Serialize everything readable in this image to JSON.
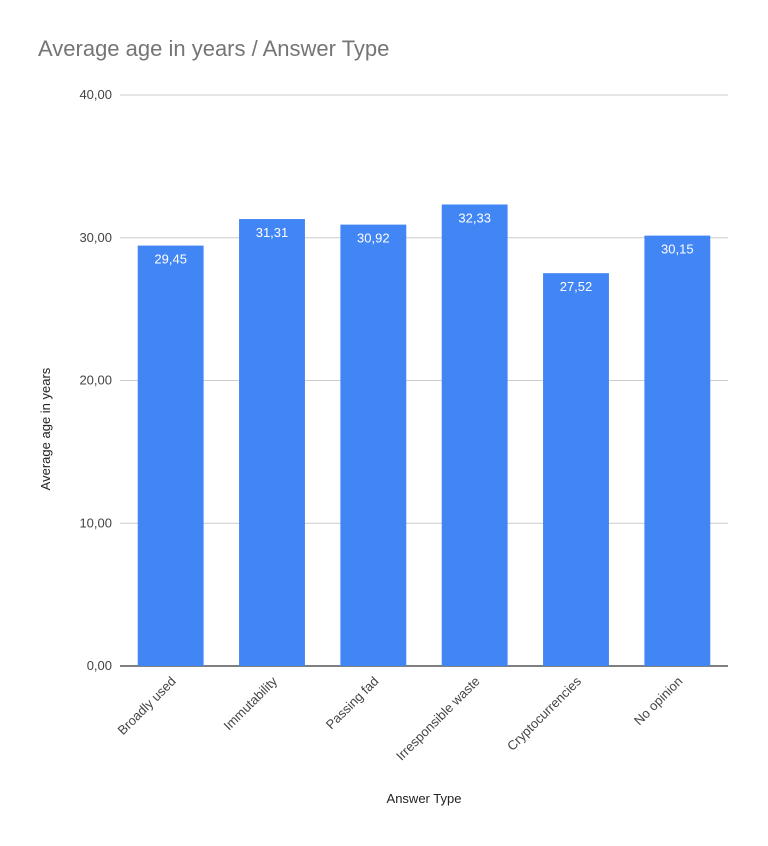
{
  "chart_data": {
    "type": "bar",
    "title": "Average age in years / Answer Type",
    "xlabel": "Answer Type",
    "ylabel": "Average age in years",
    "categories": [
      "Broadly used",
      "Immutability",
      "Passing fad",
      "Irresponsible waste",
      "Cryptocurrencies",
      "No opinion"
    ],
    "values": [
      29.45,
      31.31,
      30.92,
      32.33,
      27.52,
      30.15
    ],
    "value_labels": [
      "29,45",
      "31,31",
      "30,92",
      "32,33",
      "27,52",
      "30,15"
    ],
    "ylim": [
      0,
      40
    ],
    "yticks": [
      0,
      10,
      20,
      30,
      40
    ],
    "ytick_labels": [
      "0,00",
      "10,00",
      "20,00",
      "30,00",
      "40,00"
    ],
    "bar_color": "#4285F4",
    "grid": true,
    "legend": "none"
  }
}
